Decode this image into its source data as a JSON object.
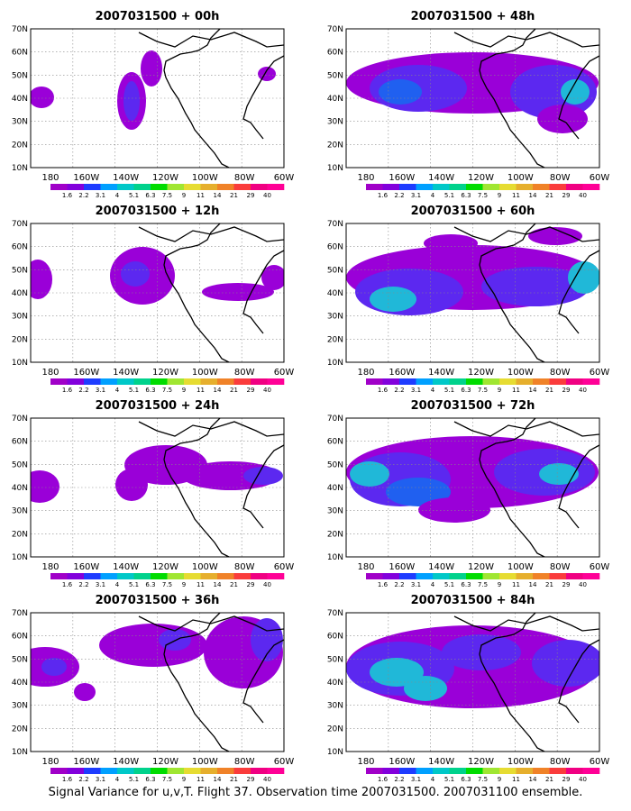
{
  "panels": [
    {
      "title": "2007031500 + 00h",
      "col": 0,
      "row": 0
    },
    {
      "title": "2007031500 + 12h",
      "col": 0,
      "row": 1
    },
    {
      "title": "2007031500 + 24h",
      "col": 0,
      "row": 2
    },
    {
      "title": "2007031500 + 36h",
      "col": 0,
      "row": 3
    },
    {
      "title": "2007031500 + 48h",
      "col": 1,
      "row": 0
    },
    {
      "title": "2007031500 + 60h",
      "col": 1,
      "row": 1
    },
    {
      "title": "2007031500 + 72h",
      "col": 1,
      "row": 2
    },
    {
      "title": "2007031500 + 84h",
      "col": 1,
      "row": 3
    }
  ],
  "lat_labels": [
    "10N",
    "20N",
    "30N",
    "40N",
    "50N",
    "60N",
    "70N"
  ],
  "lon_labels": [
    "180",
    "160W",
    "140W",
    "120W",
    "100W",
    "80W",
    "60W"
  ],
  "colorbar": {
    "labels": [
      "1.6",
      "2.2",
      "3.1",
      "4",
      "5.1",
      "6.3",
      "7.5",
      "9",
      "11",
      "14",
      "21",
      "29",
      "40"
    ],
    "colors": [
      "#a000c8",
      "#8200dc",
      "#1e3cff",
      "#00a0ff",
      "#00c8c8",
      "#00d28c",
      "#00dc00",
      "#a0e632",
      "#e6dc32",
      "#e6af2d",
      "#f08228",
      "#fa3c3c",
      "#f00082",
      "#ff0096"
    ]
  },
  "caption": "Signal Variance for u,v,T. Flight 37. Observation time 2007031500. 2007031100 ensemble."
}
